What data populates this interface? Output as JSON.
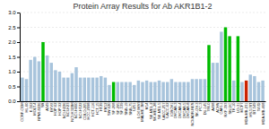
{
  "chart_data": {
    "type": "bar",
    "title": "Protein Array Results for Ab AKR1B1-2",
    "categories": [
      "CCRF-CEM",
      "HL-60",
      "K-562",
      "MOLT-4",
      "RPMI-8226",
      "SR",
      "A549",
      "EKVX",
      "HOP-62",
      "HOP-92",
      "NCI-H226",
      "NCI-H23",
      "NCI-H322M",
      "NCI-H460",
      "NCI-H522",
      "COLO-205",
      "HCC-2998",
      "HCT-116",
      "HCT-15",
      "HT29",
      "KM12",
      "SW-620",
      "SF-268",
      "SF-295",
      "SF-539",
      "SNB-19",
      "SNB-75",
      "U251",
      "LOX IMVI",
      "MALME-3M",
      "M14",
      "SK-MEL-2",
      "SK-MEL-28",
      "SK-MEL-5",
      "UACC-257",
      "UACC-62",
      "IGROV1",
      "OVCAR-3",
      "OVCAR-4",
      "OVCAR-5",
      "OVCAR-8",
      "NCI/ADR-RES",
      "SK-OV-3",
      "PC-3",
      "DU-145",
      "786-0",
      "A498",
      "ACHN",
      "CAKI-1",
      "RXF-393",
      "SN12C",
      "TK-10",
      "UO-31",
      "MCF7",
      "MDA-MB-231",
      "HS-578T",
      "BT-549",
      "T47D",
      "MDA-MB-468"
    ],
    "values": [
      0.8,
      0.75,
      1.4,
      1.5,
      1.35,
      2.0,
      1.55,
      1.3,
      1.05,
      1.0,
      0.8,
      0.8,
      0.95,
      1.15,
      0.8,
      0.8,
      0.8,
      0.8,
      0.8,
      0.85,
      0.8,
      0.55,
      0.65,
      0.65,
      0.65,
      0.65,
      0.65,
      0.55,
      0.7,
      0.65,
      0.7,
      0.65,
      0.65,
      0.7,
      0.65,
      0.65,
      0.75,
      0.65,
      0.65,
      0.65,
      0.65,
      0.75,
      0.75,
      0.75,
      0.75,
      1.9,
      1.3,
      1.3,
      2.35,
      2.5,
      2.2,
      0.7,
      2.2,
      0.65,
      0.7,
      0.9,
      0.85,
      0.65,
      0.7
    ],
    "colors": [
      "#a8c4dc",
      "#a8c4dc",
      "#a8c4dc",
      "#a8c4dc",
      "#a8c4dc",
      "#00bb00",
      "#a8c4dc",
      "#a8c4dc",
      "#a8c4dc",
      "#a8c4dc",
      "#a8c4dc",
      "#a8c4dc",
      "#a8c4dc",
      "#a8c4dc",
      "#a8c4dc",
      "#a8c4dc",
      "#a8c4dc",
      "#a8c4dc",
      "#a8c4dc",
      "#a8c4dc",
      "#a8c4dc",
      "#a8c4dc",
      "#00bb00",
      "#a8c4dc",
      "#a8c4dc",
      "#a8c4dc",
      "#a8c4dc",
      "#a8c4dc",
      "#a8c4dc",
      "#a8c4dc",
      "#a8c4dc",
      "#a8c4dc",
      "#a8c4dc",
      "#a8c4dc",
      "#a8c4dc",
      "#a8c4dc",
      "#a8c4dc",
      "#a8c4dc",
      "#a8c4dc",
      "#a8c4dc",
      "#a8c4dc",
      "#a8c4dc",
      "#a8c4dc",
      "#a8c4dc",
      "#a8c4dc",
      "#00bb00",
      "#a8c4dc",
      "#a8c4dc",
      "#a8c4dc",
      "#00bb00",
      "#00bb00",
      "#a8c4dc",
      "#00bb00",
      "#a8c4dc",
      "#cc2200",
      "#a8c4dc",
      "#a8c4dc",
      "#a8c4dc",
      "#a8c4dc"
    ],
    "ylim": [
      0.0,
      3.0
    ],
    "yticks": [
      {
        "value": 0.0,
        "label": "0.0"
      },
      0.5,
      {
        "value": 1.0,
        "label": "1.0"
      },
      1.5,
      {
        "value": 2.0,
        "label": "2.0"
      },
      2.5,
      {
        "value": 3.0,
        "label": "3.0"
      }
    ],
    "grid": true
  }
}
